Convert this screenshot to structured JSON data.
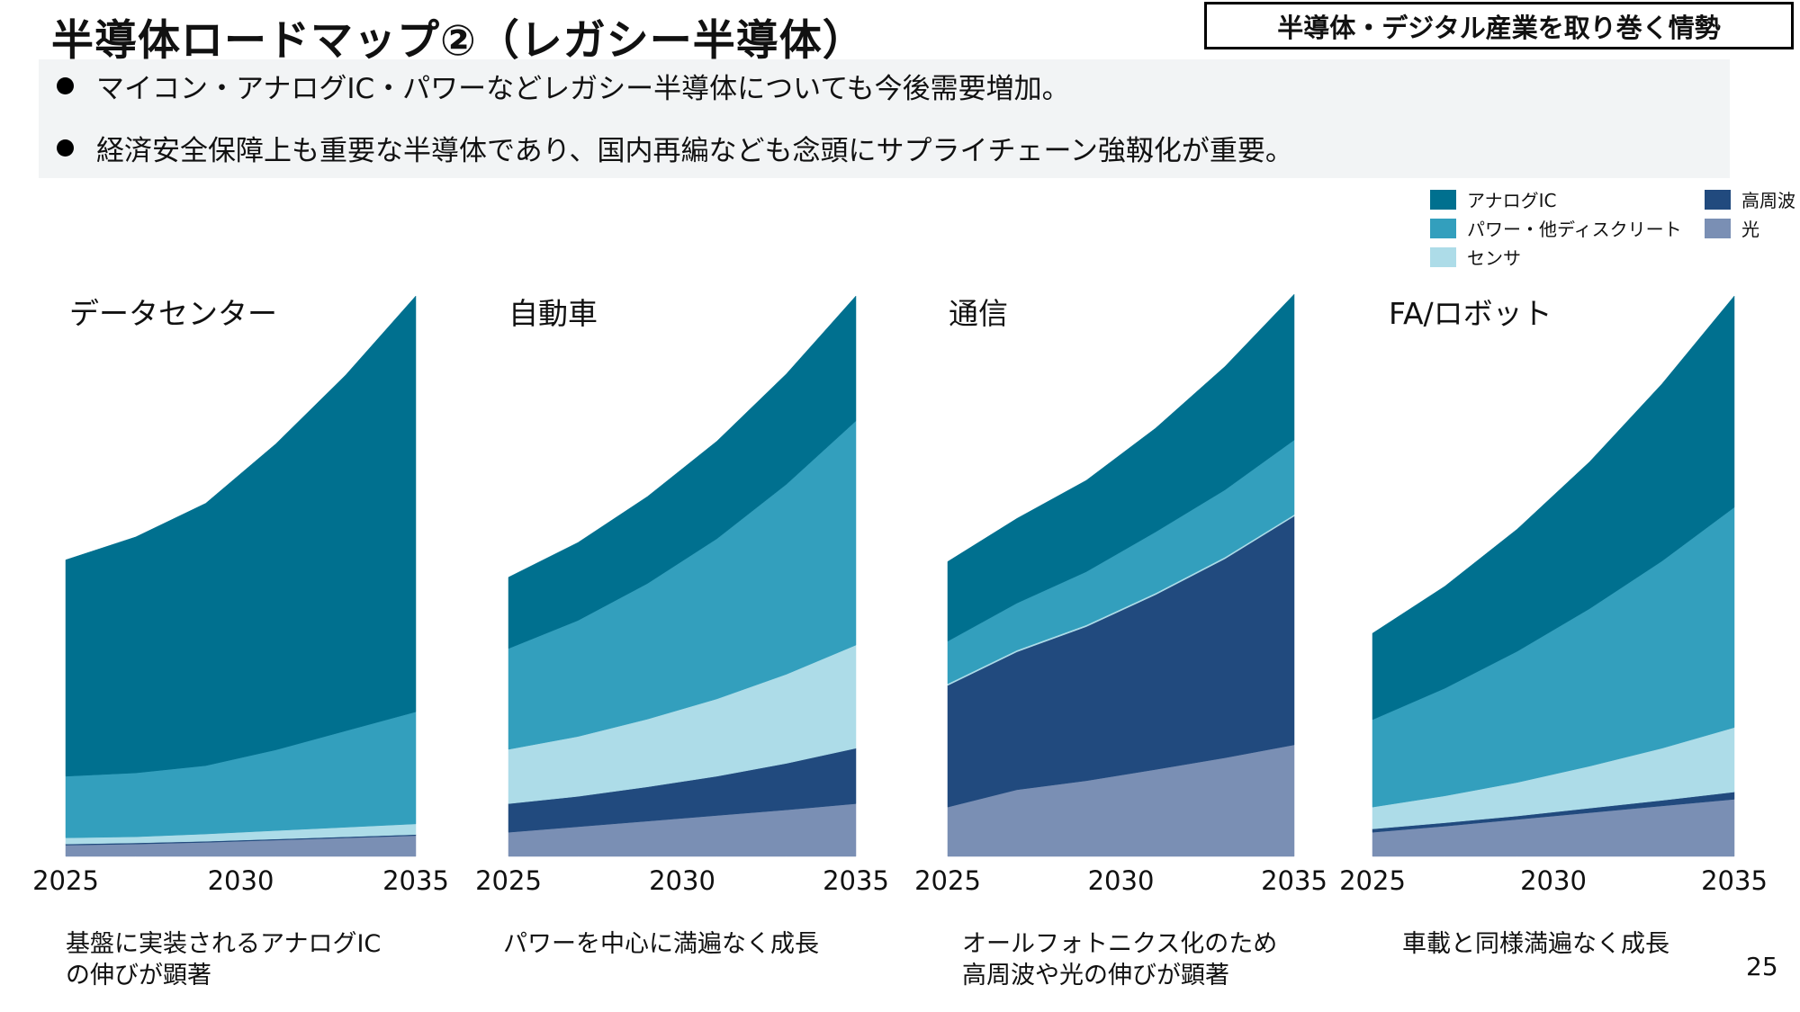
{
  "header": {
    "title": "半導体ロードマップ②（レガシー半導体）",
    "section_label": "半導体・デジタル産業を取り巻く情勢"
  },
  "bullets": [
    "マイコン・アナログIC・パワーなどレガシー半導体についても今後需要増加。",
    "経済安全保障上も重要な半導体であり、国内再編なども念頭にサプライチェーン強靱化が重要。"
  ],
  "legend": [
    {
      "label": "アナログIC",
      "color": "#00708f"
    },
    {
      "label": "パワー・他ディスクリート",
      "color": "#339fbd"
    },
    {
      "label": "センサ",
      "color": "#addce8"
    },
    {
      "label": "高周波",
      "color": "#214a7e"
    },
    {
      "label": "光",
      "color": "#7a8fb4"
    }
  ],
  "chart_data": [
    {
      "type": "area",
      "stacked": true,
      "title": "データセンター",
      "x": [
        2025,
        2027,
        2029,
        2031,
        2033,
        2035
      ],
      "x_tick_labels": [
        "2025",
        "2030",
        "2035"
      ],
      "series": [
        {
          "name": "光",
          "values": [
            2.0,
            2.2,
            2.5,
            2.9,
            3.3,
            3.7
          ]
        },
        {
          "name": "高周波",
          "values": [
            0.2,
            0.2,
            0.2,
            0.2,
            0.2,
            0.2
          ]
        },
        {
          "name": "センサ",
          "values": [
            1.1,
            1.1,
            1.3,
            1.5,
            1.7,
            1.9
          ]
        },
        {
          "name": "パワー・他ディスクリート",
          "values": [
            11.0,
            11.4,
            12.2,
            14.4,
            17.2,
            20.0
          ]
        },
        {
          "name": "アナログIC",
          "values": [
            38.6,
            42.1,
            46.8,
            54.6,
            63.5,
            74.2
          ]
        }
      ],
      "caption": "基盤に実装されるアナログIC\nの伸びが顕著"
    },
    {
      "type": "area",
      "stacked": true,
      "title": "自動車",
      "x": [
        2025,
        2027,
        2029,
        2031,
        2033,
        2035
      ],
      "x_tick_labels": [
        "2025",
        "2030",
        "2035"
      ],
      "series": [
        {
          "name": "光",
          "values": [
            4.3,
            5.3,
            6.3,
            7.3,
            8.3,
            9.4
          ]
        },
        {
          "name": "高周波",
          "values": [
            5.1,
            5.4,
            6.1,
            7.0,
            8.3,
            9.9
          ]
        },
        {
          "name": "センサ",
          "values": [
            9.7,
            10.7,
            12.1,
            13.8,
            15.9,
            18.4
          ]
        },
        {
          "name": "パワー・他ディスクリート",
          "values": [
            18.0,
            20.7,
            24.2,
            28.6,
            33.9,
            40.0
          ]
        },
        {
          "name": "アナログIC",
          "values": [
            12.7,
            13.9,
            15.5,
            17.4,
            19.7,
            22.3
          ]
        }
      ],
      "caption": "パワーを中心に満遍なく成長"
    },
    {
      "type": "area",
      "stacked": true,
      "title": "通信",
      "x": [
        2025,
        2027,
        2029,
        2031,
        2033,
        2035
      ],
      "x_tick_labels": [
        "2025",
        "2030",
        "2035"
      ],
      "series": [
        {
          "name": "光",
          "values": [
            8.8,
            11.9,
            13.5,
            15.5,
            17.6,
            19.9
          ]
        },
        {
          "name": "高周波",
          "values": [
            21.7,
            24.6,
            27.5,
            31.2,
            35.5,
            40.8
          ]
        },
        {
          "name": "センサ",
          "values": [
            0.3,
            0.3,
            0.3,
            0.3,
            0.3,
            0.3
          ]
        },
        {
          "name": "パワー・他ディスクリート",
          "values": [
            7.6,
            8.4,
            9.5,
            10.9,
            12.0,
            13.3
          ]
        },
        {
          "name": "アナログIC",
          "values": [
            14.2,
            15.1,
            16.3,
            18.5,
            22.0,
            26.0
          ]
        }
      ],
      "caption": "オールフォトニクス化のため\n高周波や光の伸びが顕著"
    },
    {
      "type": "area",
      "stacked": true,
      "title": "FA/ロボット",
      "x": [
        2025,
        2027,
        2029,
        2031,
        2033,
        2035
      ],
      "x_tick_labels": [
        "2025",
        "2030",
        "2035"
      ],
      "series": [
        {
          "name": "光",
          "values": [
            4.3,
            5.4,
            6.6,
            7.8,
            9.0,
            10.2
          ]
        },
        {
          "name": "高周波",
          "values": [
            0.6,
            0.6,
            0.6,
            0.8,
            1.0,
            1.3
          ]
        },
        {
          "name": "センサ",
          "values": [
            3.9,
            4.8,
            6.0,
            7.5,
            9.3,
            11.5
          ]
        },
        {
          "name": "パワー・他ディスクリート",
          "values": [
            15.6,
            19.2,
            23.4,
            28.1,
            33.4,
            39.3
          ]
        },
        {
          "name": "アナログIC",
          "values": [
            15.4,
            18.2,
            21.8,
            26.2,
            31.6,
            37.7
          ]
        }
      ],
      "caption": "車載と同様満遍なく成長"
    }
  ],
  "page_number": "25"
}
